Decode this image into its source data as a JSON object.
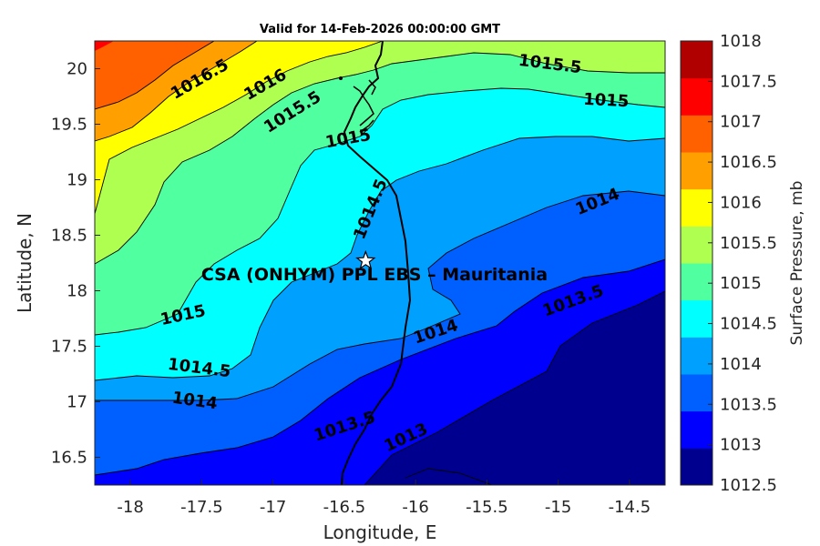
{
  "title": "Valid for 14-Feb-2026 00:00:00 GMT",
  "map": {
    "xlabel": "Longitude, E",
    "ylabel": "Latitude, N",
    "xlim": [
      -18.25,
      -14.25
    ],
    "ylim": [
      16.25,
      20.25
    ],
    "xticks": [
      "-18",
      "-17.5",
      "-17",
      "-16.5",
      "-16",
      "-15.5",
      "-15",
      "-14.5"
    ],
    "yticks": [
      "16.5",
      "17",
      "17.5",
      "18",
      "18.5",
      "19",
      "19.5",
      "20"
    ],
    "site": {
      "label": "CSA (ONHYM) PPL EBS  – Mauritania",
      "lon": -16.35,
      "lat": 18.27,
      "icon": "star-icon"
    },
    "contour_labels": [
      "1016.5",
      "1016",
      "1015.5",
      "1015",
      "1015.5",
      "1015",
      "1014.5",
      "1014",
      "1015",
      "1014.5",
      "1014",
      "1014",
      "1013.5",
      "1013.5",
      "1013"
    ]
  },
  "colorbar": {
    "title": "Surface Pressure, mb",
    "levels": [
      "1012.5",
      "1013",
      "1013.5",
      "1014",
      "1014.5",
      "1015",
      "1015.5",
      "1016",
      "1016.5",
      "1017",
      "1017.5",
      "1018"
    ],
    "colors": [
      "#00008f",
      "#0000ff",
      "#0060ff",
      "#00a0ff",
      "#00ffff",
      "#50ff9f",
      "#afff50",
      "#ffff00",
      "#ffa000",
      "#ff6000",
      "#ff0000",
      "#b00000"
    ]
  }
}
